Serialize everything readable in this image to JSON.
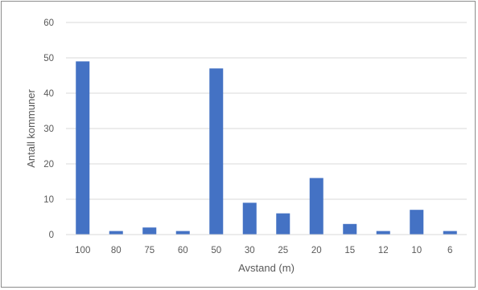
{
  "chart_data": {
    "type": "bar",
    "title": "",
    "xlabel": "Avstand (m)",
    "ylabel": "Antall kommuner",
    "categories": [
      "100",
      "80",
      "75",
      "60",
      "50",
      "30",
      "25",
      "20",
      "15",
      "12",
      "10",
      "6"
    ],
    "series": [
      {
        "values": [
          49,
          1,
          2,
          1,
          47,
          9,
          6,
          16,
          3,
          1,
          7,
          1
        ],
        "color": "#4472c4"
      }
    ],
    "ylim": [
      0,
      60
    ],
    "yticks": [
      "0",
      "10",
      "20",
      "30",
      "40",
      "50",
      "60"
    ],
    "grid": true,
    "legend": "none"
  }
}
